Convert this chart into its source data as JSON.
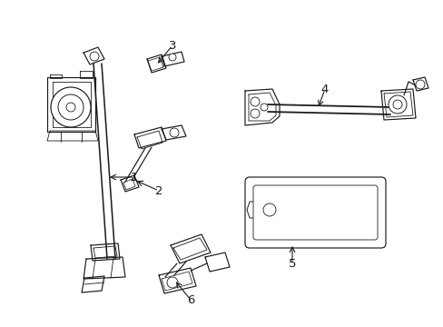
{
  "bg_color": "#ffffff",
  "line_color": "#1a1a1a",
  "fig_width": 4.89,
  "fig_height": 3.6,
  "dpi": 100,
  "lw": 0.85,
  "label_fontsize": 9.5
}
